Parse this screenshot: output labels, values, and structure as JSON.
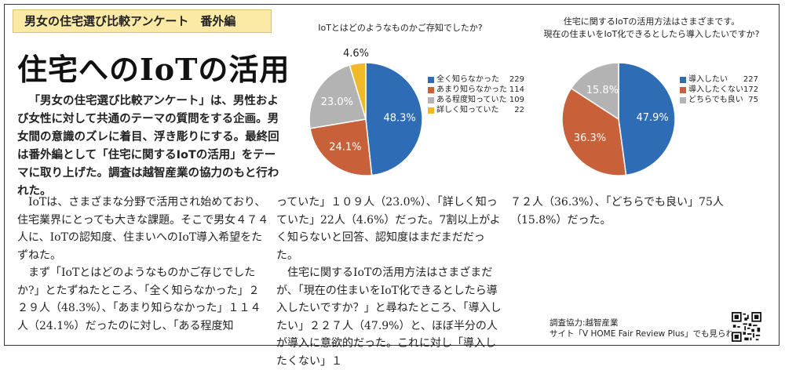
{
  "article": {
    "series_tag": "男女の住宅選び比較アンケート　番外編",
    "headline": "住宅へのIoTの活用",
    "lead": "「男女の住宅選び比較アンケート」は、男性および女性に対して共通のテーマの質問をする企画。男女間の意識のズレに着目、浮き彫りにする。最終回は番外編として「住宅に関するIoTの活用」をテーマに取り上げた。調査は越智産業の協力のもと行われた。",
    "body": {
      "col1": [
        {
          "text": "IoTは、さまざまな分野で活用され始めており、住宅業界にとっても大きな課題。そこで男女４７４人に、IoTの認知度、住まいへのIoT導入希望をたずねた。",
          "indent": true
        },
        {
          "text": "まず「IoTとはどのようなものかご存じでしたか?」とたずねたところ、「全く知らなかった」２２９人（48.3%）、「あまり知らなかった」１１４人（24.1%）だったのに対し、「ある程度知",
          "indent": true
        }
      ],
      "col2": [
        {
          "text": "っていた」１０９人（23.0%）、「詳しく知っていた」22人（4.6%）だった。7割以上がよく知らないと回答、認知度はまだまだだった。",
          "indent": false
        },
        {
          "text": "住宅に関するIoTの活用方法はさまざまだが、「現在の住まいをIoT化できるとしたら導入したいですか？」と尋ねたところ、「導入したい」２２７人（47.9%）と、ほぼ半分の人が導入に意欲的だった。これに対し「導入したくない」１",
          "indent": true
        }
      ],
      "col3": [
        {
          "text": "７２人（36.3%）、「どちらでも良い」75人（15.8%）だった。",
          "indent": false
        }
      ]
    },
    "credit": {
      "line1": "調査協力:越智産業",
      "line2": "サイト「V HOME Fair Review Plus」でも見られます"
    }
  },
  "chart_data": [
    {
      "type": "pie",
      "title": "IoTとはどのようなものかご存知でしたか?",
      "labels": [
        "全く知らなかった",
        "あまり知らなかった",
        "ある程度知っていた",
        "詳しく知っていた"
      ],
      "values": [
        229,
        114,
        109,
        22
      ],
      "percent_labels": [
        "48.3%",
        "24.1%",
        "23.0%",
        "4.6%"
      ],
      "colors": [
        "#2e6db5",
        "#c8603a",
        "#b3b3b3",
        "#f0b92a"
      ],
      "legend_position": "right"
    },
    {
      "type": "pie",
      "title_lines": [
        "住宅に関するIoTの活用方法はさまざまです。",
        "現在の住まいをIoT化できるとしたら導入したいですか?"
      ],
      "labels": [
        "導入したい",
        "導入したくない",
        "どちらでも良い"
      ],
      "values": [
        227,
        172,
        75
      ],
      "percent_labels": [
        "47.9%",
        "36.3%",
        "15.8%"
      ],
      "colors": [
        "#2e6db5",
        "#c8603a",
        "#b3b3b3"
      ],
      "legend_position": "right"
    }
  ]
}
